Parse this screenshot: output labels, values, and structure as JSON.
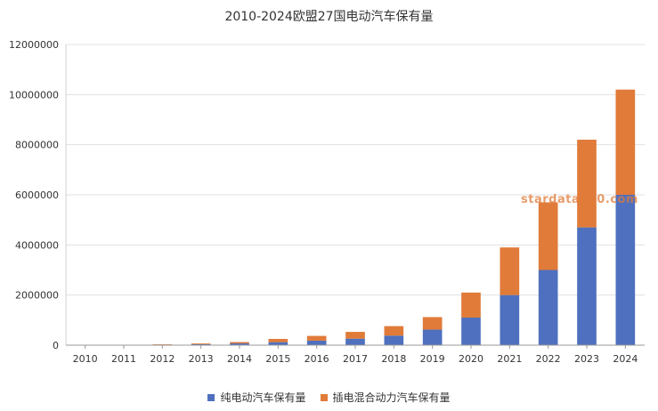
{
  "title": "2010-2024欧盟27国电动汽车保有量",
  "watermark": "stardata360.com",
  "legend": [
    {
      "label": "纯电动汽车保有量",
      "color": "#4e70be"
    },
    {
      "label": "插电混合动力汽车保有量",
      "color": "#e07b39"
    }
  ],
  "chart_data": {
    "type": "bar",
    "stacked": true,
    "title": "2010-2024欧盟27国电动汽车保有量",
    "categories": [
      "2010",
      "2011",
      "2012",
      "2013",
      "2014",
      "2015",
      "2016",
      "2017",
      "2018",
      "2019",
      "2020",
      "2021",
      "2022",
      "2023",
      "2024"
    ],
    "series": [
      {
        "name": "纯电动汽车保有量",
        "color": "#4e70be",
        "values": [
          3000,
          8000,
          20000,
          40000,
          70000,
          120000,
          180000,
          260000,
          380000,
          620000,
          1100000,
          2000000,
          3000000,
          4700000,
          6000000
        ]
      },
      {
        "name": "插电混合动力汽车保有量",
        "color": "#e07b39",
        "values": [
          1000,
          5000,
          15000,
          30000,
          55000,
          130000,
          190000,
          270000,
          380000,
          500000,
          1000000,
          1900000,
          2700000,
          3500000,
          4200000
        ]
      }
    ],
    "ylim": [
      0,
      12000000
    ],
    "yticks": [
      "0",
      "2000000",
      "4000000",
      "6000000",
      "8000000",
      "10000000",
      "12000000"
    ],
    "grid": true,
    "legend_position": "bottom"
  }
}
